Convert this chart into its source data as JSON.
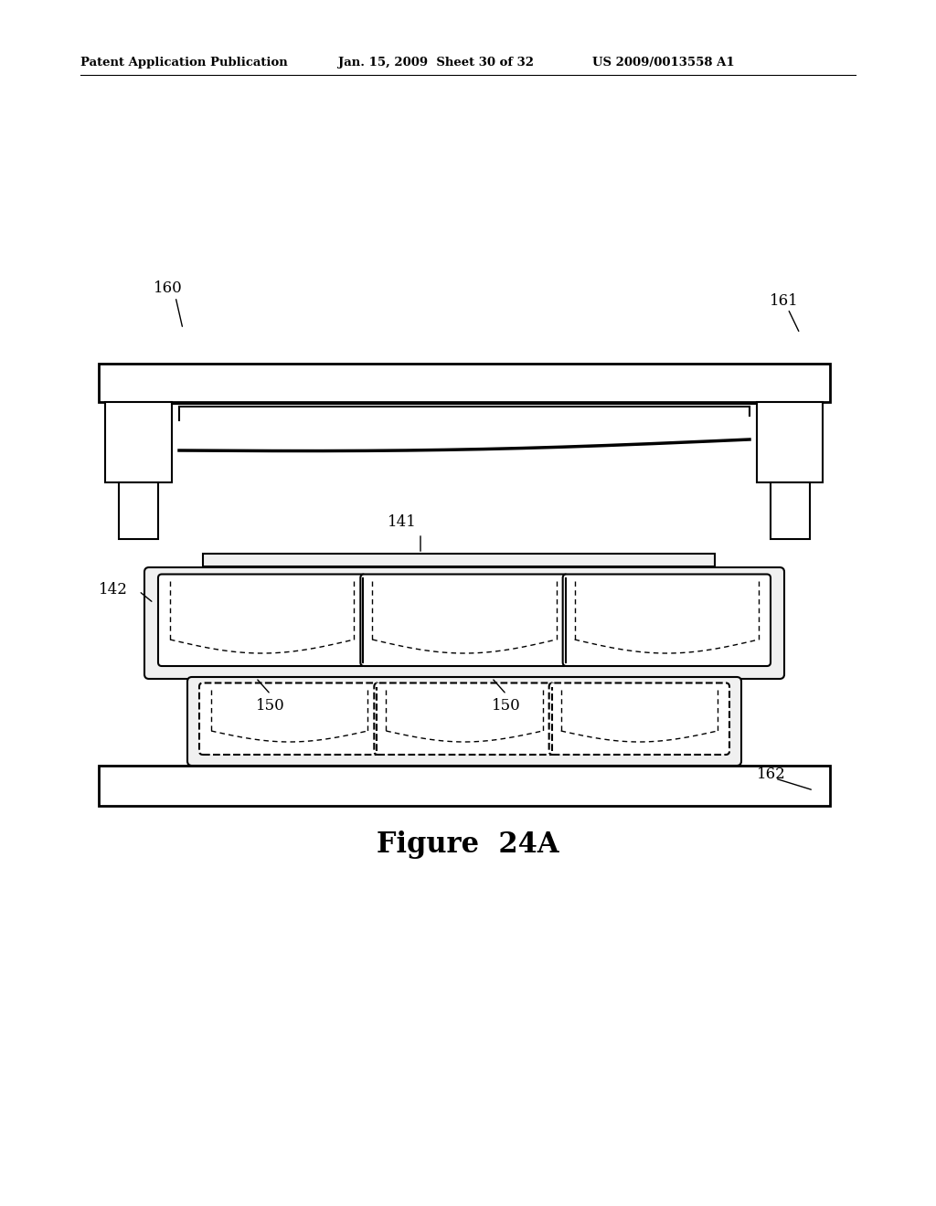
{
  "bg_color": "#ffffff",
  "header_text": "Patent Application Publication",
  "header_date": "Jan. 15, 2009  Sheet 30 of 32",
  "header_patent": "US 2009/0013558 A1",
  "figure_label": "Figure  24A"
}
